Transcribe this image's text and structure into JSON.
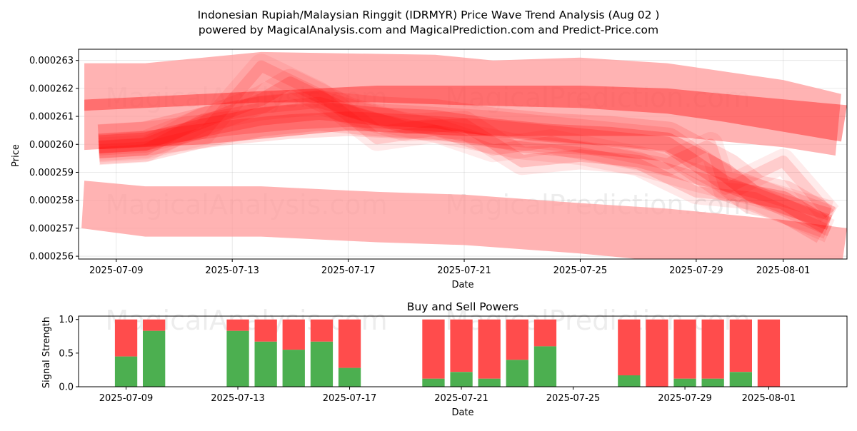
{
  "figure": {
    "title_line1": "Indonesian Rupiah/Malaysian Ringgit (IDRMYR) Price Wave Trend Analysis (Aug 02 )",
    "title_line2": "powered by MagicalAnalysis.com and MagicalPrediction.com and Predict-Price.com",
    "watermarks": [
      "MagicalAnalysis.com",
      "MagicalPrediction.com"
    ]
  },
  "chart_data": [
    {
      "type": "area",
      "title": "",
      "xlabel": "Date",
      "ylabel": "Price",
      "x_ticks": [
        "2025-07-09",
        "2025-07-13",
        "2025-07-17",
        "2025-07-21",
        "2025-07-25",
        "2025-07-29",
        "2025-08-01"
      ],
      "y_ticks": [
        "0.000256",
        "0.000257",
        "0.000258",
        "0.000259",
        "0.000260",
        "0.000261",
        "0.000262",
        "0.000263"
      ],
      "ylim": [
        0.0002559,
        0.0002634
      ],
      "xlim": [
        "2025-07-07.7",
        "2025-08-03.2"
      ],
      "grid": true,
      "colors": {
        "band": "#ff0000",
        "wide_band": "#ff9999"
      },
      "bands": [
        {
          "upper": [
            [
              "2025-07-07.9",
              0.0002629
            ],
            [
              "2025-07-10",
              0.0002629
            ],
            [
              "2025-07-14",
              0.0002633
            ],
            [
              "2025-07-20",
              0.0002632
            ],
            [
              "2025-07-22",
              0.000263
            ],
            [
              "2025-07-25",
              0.0002631
            ],
            [
              "2025-07-28",
              0.0002629
            ],
            [
              "2025-07-30",
              0.0002626
            ],
            [
              "2025-08-01",
              0.0002623
            ],
            [
              "2025-08-03",
              0.0002618
            ]
          ],
          "lower": [
            [
              "2025-07-07.9",
              0.0002598
            ],
            [
              "2025-07-12",
              0.00026
            ],
            [
              "2025-07-17",
              0.0002605
            ],
            [
              "2025-07-21",
              0.0002603
            ],
            [
              "2025-07-25",
              0.0002603
            ],
            [
              "2025-07-28",
              0.0002603
            ],
            [
              "2025-07-30",
              0.0002601
            ],
            [
              "2025-08-01",
              0.0002599
            ],
            [
              "2025-08-02.8",
              0.0002596
            ]
          ],
          "opacity": 0.28
        },
        {
          "upper": [
            [
              "2025-07-07.9",
              0.0002616
            ],
            [
              "2025-07-10",
              0.0002617
            ],
            [
              "2025-07-14",
              0.0002619
            ],
            [
              "2025-07-18",
              0.0002621
            ],
            [
              "2025-07-21",
              0.0002621
            ],
            [
              "2025-07-25",
              0.0002621
            ],
            [
              "2025-07-28",
              0.000262
            ],
            [
              "2025-07-30",
              0.0002618
            ],
            [
              "2025-08-03.2",
              0.0002614
            ]
          ],
          "lower": [
            [
              "2025-07-07.9",
              0.0002612
            ],
            [
              "2025-07-10",
              0.0002613
            ],
            [
              "2025-07-14",
              0.0002615
            ],
            [
              "2025-07-18",
              0.0002615
            ],
            [
              "2025-07-21",
              0.0002614
            ],
            [
              "2025-07-25",
              0.0002613
            ],
            [
              "2025-07-28",
              0.0002611
            ],
            [
              "2025-07-30",
              0.0002608
            ],
            [
              "2025-08-03",
              0.0002601
            ]
          ],
          "opacity": 0.38
        },
        {
          "upper": [
            [
              "2025-07-07.9",
              0.0002587
            ],
            [
              "2025-07-10",
              0.0002585
            ],
            [
              "2025-07-14",
              0.0002585
            ],
            [
              "2025-07-18",
              0.0002583
            ],
            [
              "2025-07-21",
              0.0002582
            ],
            [
              "2025-07-25",
              0.0002579
            ],
            [
              "2025-07-28",
              0.0002577
            ],
            [
              "2025-07-30",
              0.0002575
            ],
            [
              "2025-08-01",
              0.0002573
            ],
            [
              "2025-08-03.2",
              0.000257
            ]
          ],
          "lower": [
            [
              "2025-07-07.8",
              0.000257
            ],
            [
              "2025-07-10",
              0.0002567
            ],
            [
              "2025-07-14",
              0.0002567
            ],
            [
              "2025-07-18",
              0.0002565
            ],
            [
              "2025-07-21",
              0.0002564
            ],
            [
              "2025-07-25",
              0.0002561
            ],
            [
              "2025-07-28",
              0.0002558
            ],
            [
              "2025-07-30",
              0.0002557
            ],
            [
              "2025-08-01",
              0.0002556
            ],
            [
              "2025-08-03",
              0.0002555
            ]
          ],
          "opacity": 0.3
        }
      ],
      "waves": [
        {
          "points": [
            [
              "2025-07-08.4",
              0.00026
            ],
            [
              "2025-07-10",
              0.0002601
            ],
            [
              "2025-07-12",
              0.0002606
            ],
            [
              "2025-07-14",
              0.000261
            ],
            [
              "2025-07-16",
              0.0002612
            ],
            [
              "2025-07-18",
              0.000261
            ],
            [
              "2025-07-20",
              0.0002609
            ],
            [
              "2025-07-22",
              0.0002606
            ],
            [
              "2025-07-24",
              0.0002604
            ],
            [
              "2025-07-26",
              0.0002603
            ],
            [
              "2025-07-28",
              0.0002601
            ],
            [
              "2025-07-30",
              0.000259
            ],
            [
              "2025-07-31",
              0.0002582
            ],
            [
              "2025-08-01",
              0.000258
            ],
            [
              "2025-08-02.5",
              0.0002571
            ]
          ],
          "width": 6.5e-07,
          "opacity": 0.22
        },
        {
          "points": [
            [
              "2025-07-08.4",
              0.0002599
            ],
            [
              "2025-07-10",
              0.00026
            ],
            [
              "2025-07-12",
              0.0002608
            ],
            [
              "2025-07-14",
              0.0002616
            ],
            [
              "2025-07-15",
              0.0002622
            ],
            [
              "2025-07-17",
              0.0002612
            ],
            [
              "2025-07-19",
              0.0002606
            ],
            [
              "2025-07-21",
              0.0002607
            ],
            [
              "2025-07-23",
              0.0002594
            ],
            [
              "2025-07-25",
              0.0002596
            ],
            [
              "2025-07-27",
              0.0002594
            ],
            [
              "2025-07-29",
              0.0002588
            ],
            [
              "2025-07-31",
              0.0002583
            ],
            [
              "2025-08-02.6",
              0.0002575
            ]
          ],
          "width": 4.5e-07,
          "opacity": 0.16
        },
        {
          "points": [
            [
              "2025-07-08.4",
              0.0002598
            ],
            [
              "2025-07-10",
              0.0002599
            ],
            [
              "2025-07-12",
              0.0002604
            ],
            [
              "2025-07-14",
              0.0002628
            ],
            [
              "2025-07-16",
              0.0002618
            ],
            [
              "2025-07-18",
              0.0002602
            ],
            [
              "2025-07-20",
              0.0002605
            ],
            [
              "2025-07-22",
              0.0002598
            ],
            [
              "2025-07-24",
              0.0002601
            ],
            [
              "2025-07-26",
              0.0002597
            ],
            [
              "2025-07-28",
              0.0002593
            ],
            [
              "2025-07-29.5",
              0.00026
            ],
            [
              "2025-07-30",
              0.0002584
            ],
            [
              "2025-08-01",
              0.0002594
            ],
            [
              "2025-08-02.6",
              0.0002575
            ]
          ],
          "width": 4e-07,
          "opacity": 0.13
        },
        {
          "points": [
            [
              "2025-07-08.4",
              0.0002601
            ],
            [
              "2025-07-10",
              0.0002602
            ],
            [
              "2025-07-13",
              0.0002606
            ],
            [
              "2025-07-15",
              0.0002608
            ],
            [
              "2025-07-17",
              0.0002609
            ],
            [
              "2025-07-19",
              0.0002608
            ],
            [
              "2025-07-22",
              0.0002606
            ],
            [
              "2025-07-25",
              0.0002603
            ],
            [
              "2025-07-28",
              0.00026
            ],
            [
              "2025-07-30",
              0.0002586
            ],
            [
              "2025-08-01",
              0.0002578
            ],
            [
              "2025-08-02.6",
              0.0002572
            ]
          ],
          "width": 5.5e-07,
          "opacity": 0.2
        },
        {
          "points": [
            [
              "2025-07-08.4",
              0.0002597
            ],
            [
              "2025-07-10",
              0.0002598
            ],
            [
              "2025-07-12",
              0.0002609
            ],
            [
              "2025-07-14",
              0.0002613
            ],
            [
              "2025-07-16",
              0.0002615
            ],
            [
              "2025-07-18",
              0.0002609
            ],
            [
              "2025-07-21",
              0.0002603
            ],
            [
              "2025-07-23",
              0.0002599
            ],
            [
              "2025-07-25",
              0.0002597
            ],
            [
              "2025-07-27",
              0.0002593
            ],
            [
              "2025-07-29",
              0.0002583
            ],
            [
              "2025-07-31",
              0.0002581
            ],
            [
              "2025-08-02.6",
              0.0002569
            ]
          ],
          "width": 4e-07,
          "opacity": 0.15
        }
      ]
    },
    {
      "type": "bar",
      "title": "Buy and Sell Powers",
      "xlabel": "Date",
      "ylabel": "Signal Strength",
      "x_ticks": [
        "2025-07-09",
        "2025-07-13",
        "2025-07-17",
        "2025-07-21",
        "2025-07-25",
        "2025-07-29",
        "2025-08-01"
      ],
      "y_ticks": [
        "0.0",
        "0.5",
        "1.0"
      ],
      "ylim": [
        0,
        1.05
      ],
      "xlim": [
        "2025-07-07.3",
        "2025-08-03.8"
      ],
      "series": [
        {
          "values": [
            0.45,
            0.83,
            0.83,
            0.67,
            0.55,
            0.67,
            0.28,
            0.12,
            0.22,
            0.12,
            0.4,
            0.6,
            0.17,
            0.0,
            0.12,
            0.12,
            0.22,
            0.0
          ]
        },
        {
          "values": [
            0.55,
            0.17,
            0.17,
            0.33,
            0.45,
            0.33,
            0.72,
            0.88,
            0.78,
            0.88,
            0.6,
            0.4,
            0.83,
            1.0,
            0.88,
            0.88,
            0.78,
            1.0
          ]
        }
      ],
      "categories": [
        "2025-07-09",
        "2025-07-10",
        "2025-07-13",
        "2025-07-14",
        "2025-07-15",
        "2025-07-16",
        "2025-07-17",
        "2025-07-20",
        "2025-07-21",
        "2025-07-22",
        "2025-07-23",
        "2025-07-24",
        "2025-07-27",
        "2025-07-28",
        "2025-07-29",
        "2025-07-30",
        "2025-07-31",
        "2025-08-01"
      ],
      "colors": {
        "buy": "#4caf50",
        "sell": "#ff4c4c"
      }
    }
  ]
}
